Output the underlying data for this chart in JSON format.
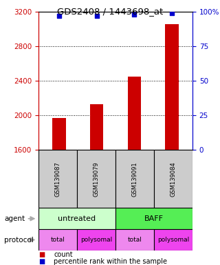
{
  "title": "GDS2408 / 1443698_at",
  "samples": [
    "GSM139087",
    "GSM139079",
    "GSM139091",
    "GSM139084"
  ],
  "bar_values": [
    1970,
    2130,
    2450,
    3060
  ],
  "scatter_values": [
    97,
    97,
    98,
    99
  ],
  "bar_color": "#cc0000",
  "scatter_color": "#0000cc",
  "ylim_left": [
    1600,
    3200
  ],
  "ylim_right": [
    0,
    100
  ],
  "yticks_left": [
    1600,
    2000,
    2400,
    2800,
    3200
  ],
  "yticks_right": [
    0,
    25,
    50,
    75,
    100
  ],
  "ytick_labels_right": [
    "0",
    "25",
    "50",
    "75",
    "100%"
  ],
  "agent_labels": [
    "untreated",
    "BAFF"
  ],
  "agent_colors": [
    "#ccffcc",
    "#55ee55"
  ],
  "protocol_labels": [
    "total",
    "polysomal",
    "total",
    "polysomal"
  ],
  "protocol_colors": [
    "#ee88ee",
    "#ee44ee",
    "#ee88ee",
    "#ee44ee"
  ],
  "sample_box_color": "#cccccc",
  "legend_count": "count",
  "legend_pct": "percentile rank within the sample",
  "left_tick_color": "#cc0000",
  "right_tick_color": "#0000cc",
  "grid_lines": [
    2000,
    2400,
    2800
  ],
  "arrow_color": "#aaaaaa"
}
